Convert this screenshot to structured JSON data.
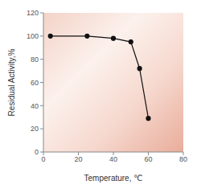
{
  "chart_data": {
    "type": "line",
    "x_label": "Temperature, ℃",
    "y_label": "Residual Activity,%",
    "x": [
      4,
      25,
      40,
      50,
      55,
      60
    ],
    "values": [
      100,
      100,
      98,
      95,
      72,
      29
    ],
    "color": "#111111",
    "marker": "circle",
    "xlim": [
      0,
      80
    ],
    "ylim": [
      0,
      120
    ],
    "xticks": [
      0,
      20,
      40,
      60,
      80
    ],
    "yticks": [
      0,
      20,
      40,
      60,
      80,
      100,
      120
    ],
    "grid": false
  }
}
